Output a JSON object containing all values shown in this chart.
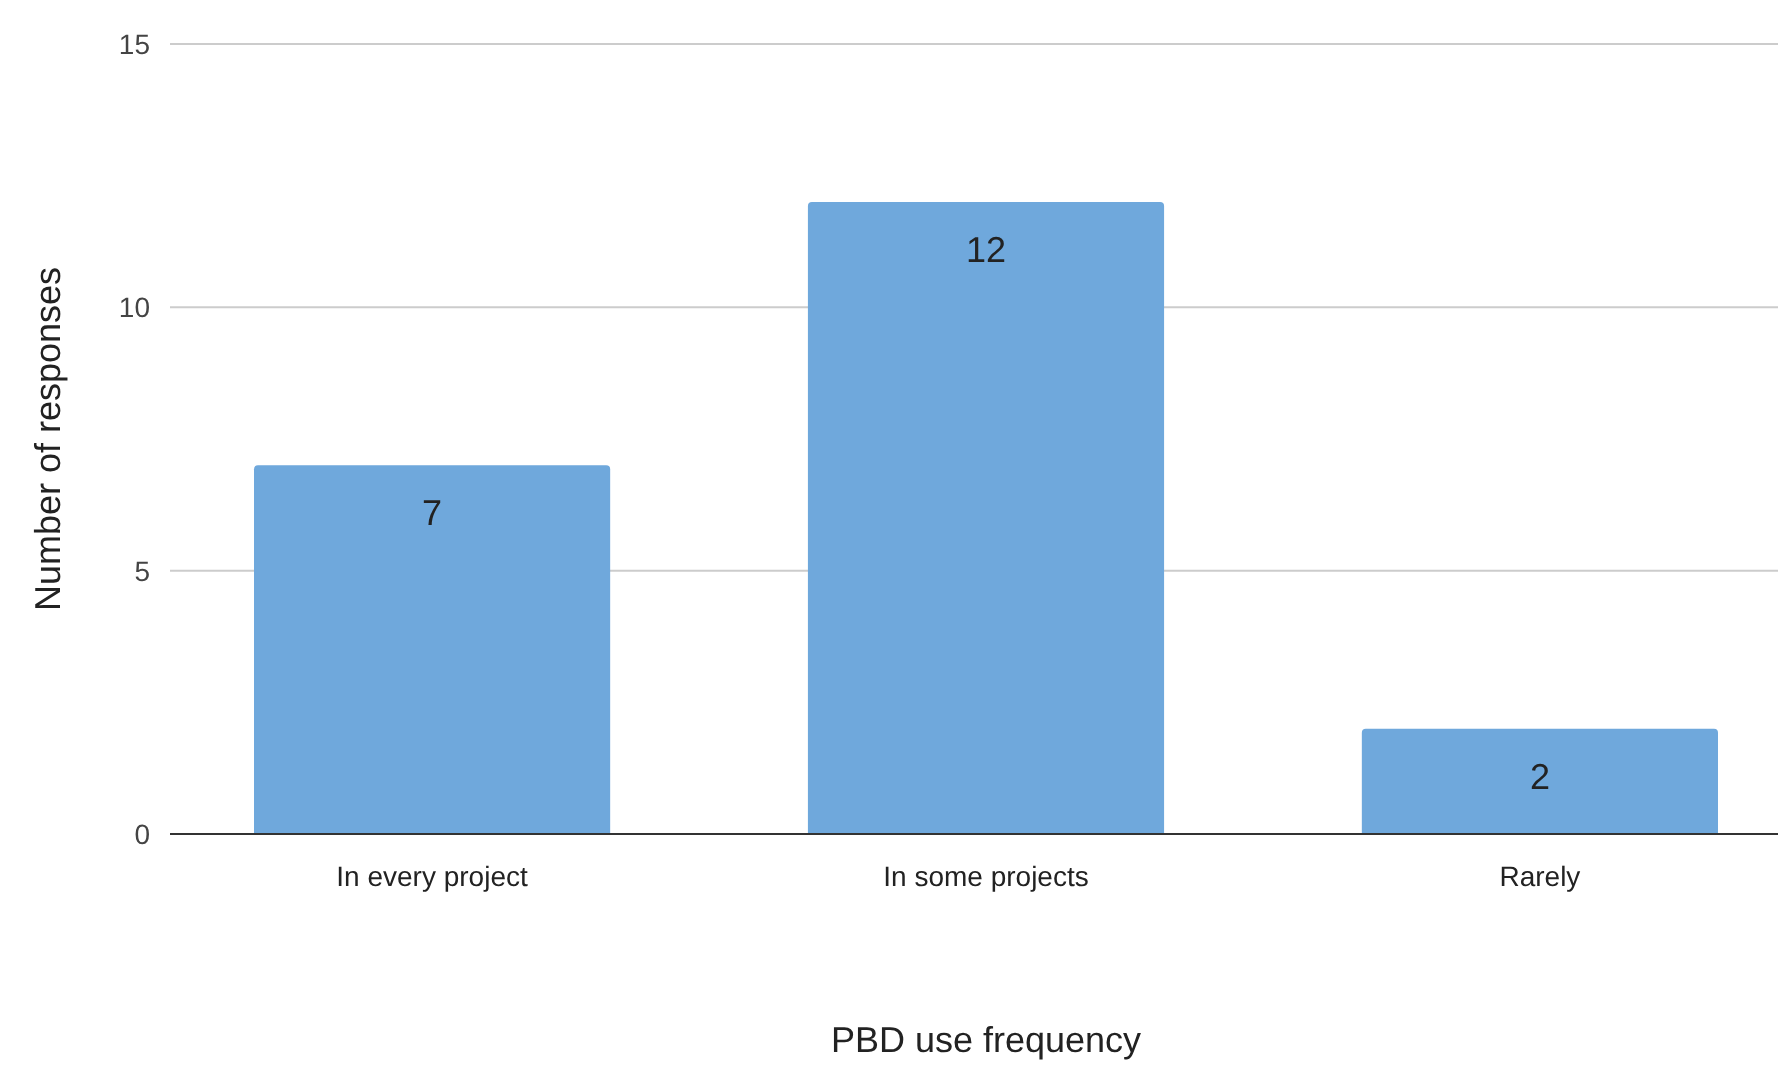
{
  "chart_data": {
    "type": "bar",
    "xlabel": "PBD use frequency",
    "ylabel": "Number of responses",
    "categories": [
      "In every project",
      "In some projects",
      "Rarely"
    ],
    "values": [
      7,
      12,
      2
    ],
    "color": "#6fa8dc",
    "ylim": [
      0,
      15
    ],
    "yticks": [
      0,
      5,
      10,
      15
    ],
    "grid": "y",
    "data_labels": true
  }
}
